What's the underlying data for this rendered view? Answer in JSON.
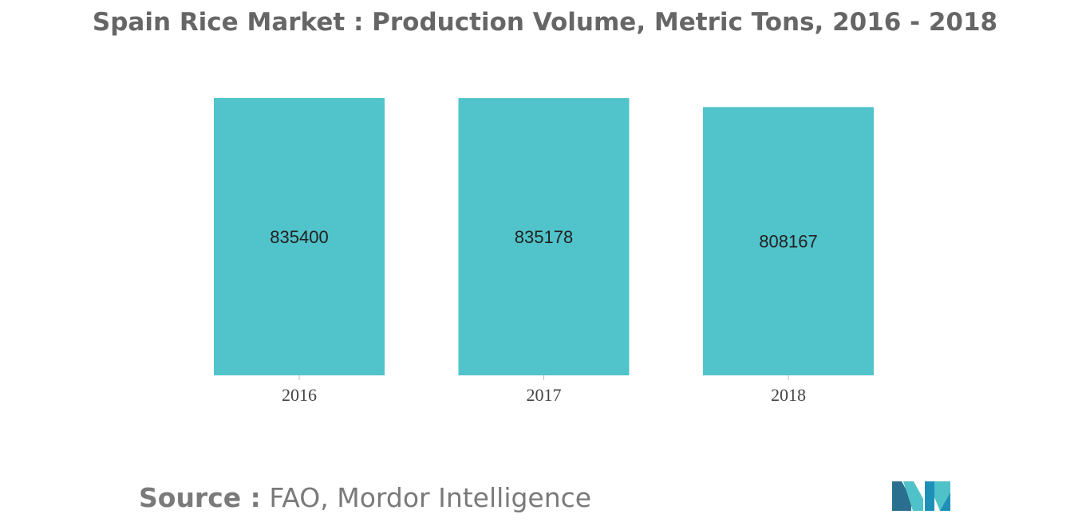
{
  "title": "Spain Rice Market : Production Volume, Metric Tons, 2016 - 2018",
  "source": {
    "label": "Source :",
    "text": "FAO, Mordor Intelligence"
  },
  "logo": {
    "icon": "mordor-intelligence-logo-icon",
    "colors": [
      "#2a6f8f",
      "#4fc1c9",
      "#1e90b8"
    ]
  },
  "chart_data": {
    "type": "bar",
    "categories": [
      "2016",
      "2017",
      "2018"
    ],
    "values": [
      835400,
      835178,
      808167
    ],
    "data_labels": [
      "835400",
      "835178",
      "808167"
    ],
    "title": "Spain Rice Market : Production Volume, Metric Tons, 2016 - 2018",
    "xlabel": "",
    "ylabel": "",
    "ylim": [
      0,
      835400
    ],
    "grid": false,
    "legend": "none",
    "bar_color": "#51c3ca"
  }
}
